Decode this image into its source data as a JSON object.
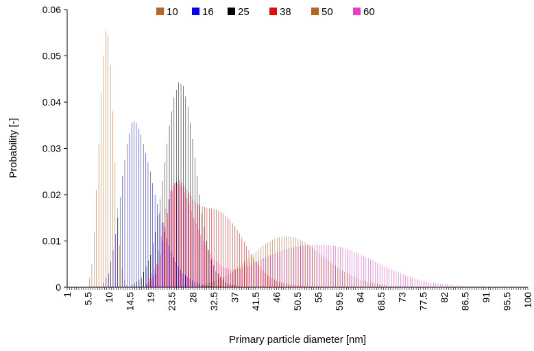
{
  "chart_data": {
    "type": "bar",
    "title": "",
    "xlabel": "Primary particle diameter [nm]",
    "ylabel": "Probability [-]",
    "xlim": [
      1,
      100
    ],
    "ylim": [
      0,
      0.06
    ],
    "x_step": 0.5,
    "x_tick_labels": [
      "1",
      "5.5",
      "10",
      "14.5",
      "19",
      "23.5",
      "28",
      "32.5",
      "37",
      "41.5",
      "46",
      "50.5",
      "55",
      "59.5",
      "64",
      "68.5",
      "73",
      "77.5",
      "82",
      "86.5",
      "91",
      "95.5",
      "100"
    ],
    "y_ticks": [
      0,
      0.01,
      0.02,
      0.03,
      0.04,
      0.05,
      0.06
    ],
    "y_tick_labels": [
      "0",
      "0.01",
      "0.02",
      "0.03",
      "0.04",
      "0.05",
      "0.06"
    ],
    "grid": false,
    "legend_position": "top",
    "series": [
      {
        "name": "10",
        "color": "#c0631f",
        "points": [
          [
            6,
            0.002
          ],
          [
            6.5,
            0.005
          ],
          [
            7,
            0.012
          ],
          [
            7.5,
            0.021
          ],
          [
            8,
            0.031
          ],
          [
            8.5,
            0.042
          ],
          [
            9,
            0.05
          ],
          [
            9.5,
            0.0553
          ],
          [
            10,
            0.0545
          ],
          [
            10.5,
            0.048
          ],
          [
            11,
            0.038
          ],
          [
            11.5,
            0.027
          ],
          [
            12,
            0.017
          ],
          [
            12.5,
            0.009
          ],
          [
            13,
            0.004
          ],
          [
            13.5,
            0.0015
          ],
          [
            14,
            0.0005
          ]
        ]
      },
      {
        "name": "16",
        "color": "#0000ff",
        "points": [
          [
            9,
            0.001
          ],
          [
            10,
            0.003
          ],
          [
            11,
            0.008
          ],
          [
            12,
            0.015
          ],
          [
            13,
            0.024
          ],
          [
            14,
            0.031
          ],
          [
            15,
            0.0355
          ],
          [
            15.5,
            0.0358
          ],
          [
            16,
            0.0355
          ],
          [
            17,
            0.033
          ],
          [
            18,
            0.029
          ],
          [
            19,
            0.025
          ],
          [
            20,
            0.02
          ],
          [
            21,
            0.016
          ],
          [
            22,
            0.012
          ],
          [
            23,
            0.009
          ],
          [
            24,
            0.0065
          ],
          [
            25,
            0.0045
          ],
          [
            26,
            0.003
          ],
          [
            28,
            0.0015
          ],
          [
            30,
            0.0005
          ],
          [
            33,
            0.0001
          ]
        ]
      },
      {
        "name": "25",
        "color": "#000000",
        "points": [
          [
            15,
            0.0005
          ],
          [
            17,
            0.002
          ],
          [
            19,
            0.007
          ],
          [
            20,
            0.012
          ],
          [
            21,
            0.019
          ],
          [
            22,
            0.027
          ],
          [
            23,
            0.035
          ],
          [
            24,
            0.041
          ],
          [
            25,
            0.0443
          ],
          [
            26,
            0.0435
          ],
          [
            27,
            0.039
          ],
          [
            28,
            0.032
          ],
          [
            29,
            0.024
          ],
          [
            30,
            0.016
          ],
          [
            31,
            0.01
          ],
          [
            32,
            0.006
          ],
          [
            33,
            0.0035
          ],
          [
            35,
            0.001
          ],
          [
            38,
            0.0002
          ]
        ]
      },
      {
        "name": "38",
        "color": "#ff0000",
        "points": [
          [
            18,
            0.0005
          ],
          [
            20,
            0.003
          ],
          [
            21,
            0.007
          ],
          [
            22,
            0.013
          ],
          [
            23,
            0.019
          ],
          [
            24,
            0.0225
          ],
          [
            25,
            0.0232
          ],
          [
            26,
            0.022
          ],
          [
            27,
            0.0205
          ],
          [
            28,
            0.019
          ],
          [
            29,
            0.018
          ],
          [
            30,
            0.0175
          ],
          [
            31,
            0.0172
          ],
          [
            32,
            0.017
          ],
          [
            33,
            0.0168
          ],
          [
            34,
            0.0163
          ],
          [
            35,
            0.0155
          ],
          [
            36,
            0.0145
          ],
          [
            37,
            0.0132
          ],
          [
            38,
            0.0116
          ],
          [
            39,
            0.0098
          ],
          [
            40,
            0.008
          ],
          [
            41,
            0.0063
          ],
          [
            42,
            0.0048
          ],
          [
            43,
            0.0036
          ],
          [
            44,
            0.0026
          ],
          [
            46,
            0.0014
          ],
          [
            48,
            0.0007
          ],
          [
            52,
            0.0002
          ],
          [
            56,
            0.0001
          ]
        ]
      },
      {
        "name": "50",
        "color": "#b5651d",
        "points": [
          [
            30,
            0.0005
          ],
          [
            33,
            0.0015
          ],
          [
            36,
            0.003
          ],
          [
            39,
            0.0055
          ],
          [
            42,
            0.0082
          ],
          [
            44,
            0.0097
          ],
          [
            46,
            0.0107
          ],
          [
            48,
            0.0111
          ],
          [
            50,
            0.0107
          ],
          [
            52,
            0.0097
          ],
          [
            54,
            0.0082
          ],
          [
            56,
            0.0066
          ],
          [
            58,
            0.005
          ],
          [
            60,
            0.0036
          ],
          [
            63,
            0.002
          ],
          [
            66,
            0.001
          ],
          [
            70,
            0.0003
          ],
          [
            75,
            0.0001
          ]
        ]
      },
      {
        "name": "60",
        "color": "#ff33cc",
        "points": [
          [
            18,
            0.001
          ],
          [
            20,
            0.005
          ],
          [
            21,
            0.011
          ],
          [
            22,
            0.017
          ],
          [
            23,
            0.021
          ],
          [
            24,
            0.0225
          ],
          [
            25,
            0.0222
          ],
          [
            26,
            0.0205
          ],
          [
            27,
            0.018
          ],
          [
            28,
            0.015
          ],
          [
            30,
            0.01
          ],
          [
            32,
            0.0065
          ],
          [
            34,
            0.0045
          ],
          [
            36,
            0.0038
          ],
          [
            38,
            0.004
          ],
          [
            40,
            0.0048
          ],
          [
            42,
            0.0058
          ],
          [
            44,
            0.0068
          ],
          [
            46,
            0.0076
          ],
          [
            48,
            0.0083
          ],
          [
            50,
            0.0088
          ],
          [
            52,
            0.0091
          ],
          [
            54,
            0.0092
          ],
          [
            56,
            0.0092
          ],
          [
            58,
            0.009
          ],
          [
            60,
            0.0086
          ],
          [
            62,
            0.0079
          ],
          [
            64,
            0.007
          ],
          [
            66,
            0.006
          ],
          [
            68,
            0.005
          ],
          [
            70,
            0.0041
          ],
          [
            72,
            0.0032
          ],
          [
            74,
            0.0024
          ],
          [
            76,
            0.0017
          ],
          [
            78,
            0.0012
          ],
          [
            80,
            0.0008
          ],
          [
            84,
            0.0004
          ],
          [
            88,
            0.0002
          ],
          [
            92,
            0.0001
          ],
          [
            96,
            5e-05
          ],
          [
            100,
            2e-05
          ]
        ]
      }
    ]
  }
}
